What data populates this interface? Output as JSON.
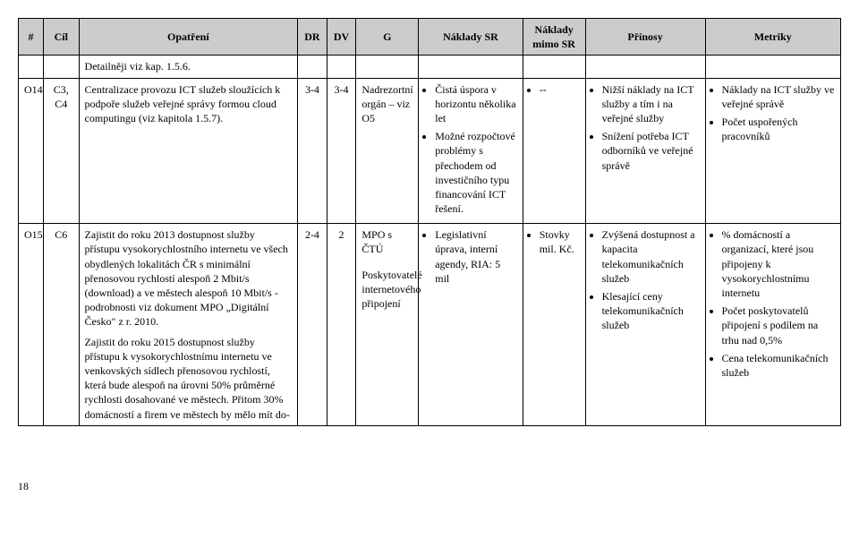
{
  "columns": [
    "#",
    "Cíl",
    "Opatření",
    "DR",
    "DV",
    "G",
    "Náklady SR",
    "Náklady mimo SR",
    "Přínosy",
    "Metriky"
  ],
  "detail_row": {
    "opatreni": "Detailněji viz kap. 1.5.6."
  },
  "rows": [
    {
      "hash": "O14",
      "cil": "C3, C4",
      "opatreni": "Centralizace provozu ICT služeb sloužících k podpoře služeb veřejné správy formou cloud computingu (viz kapitola 1.5.7).",
      "dr": "3-4",
      "dv": "3-4",
      "g": "Nadrezortní orgán – viz O5",
      "naklady_sr": [
        "Čistá úspora v horizontu několika let",
        "Možné rozpočtové problémy s přechodem od investičního typu financování ICT řešení."
      ],
      "naklady_mimo": [
        "--"
      ],
      "prinosy": [
        "Nižší náklady na ICT služby a tím i na veřejné služby",
        "Snížení potřeba ICT odborníků ve veřejné správě"
      ],
      "metriky": [
        "Náklady na ICT služby ve veřejné správě",
        "Počet uspořených pracovníků"
      ]
    },
    {
      "hash": "O15",
      "cil": "C6",
      "opatreni_p1": "Zajistit do roku 2013 dostupnost služby přístupu vysokorychlostního internetu ve všech obydlených lokalitách ČR s minimální přenosovou rychlostí alespoň 2 Mbit/s (download) a ve městech alespoň 10 Mbit/s - podrobnosti viz dokument MPO „Digitální Česko\" z r. 2010.",
      "opatreni_p2": "Zajistit do roku 2015 dostupnost služby přístupu k vysokorychlostnímu internetu ve venkovských sídlech přenosovou rychlostí, která bude alespoň na úrovni 50% průměrné rychlosti dosahované ve městech. Přitom 30% domácností a firem ve městech by mělo mít do-",
      "dr": "2-4",
      "dv": "2",
      "g_p1": "MPO s ČTÚ",
      "g_p2": "Poskytovatelé internetového připojení",
      "naklady_sr": [
        "Legislativní úprava, interní agendy, RIA: 5 mil"
      ],
      "naklady_mimo": [
        "Stovky mil. Kč."
      ],
      "prinosy": [
        "Zvýšená dostupnost a kapacita telekomunikačních služeb",
        "Klesající ceny telekomunikačních služeb"
      ],
      "metriky": [
        "% domácností a organizací, které jsou připojeny k vysokorychlostnímu internetu",
        "Počet poskytovatelů připojení s podílem na trhu nad 0,5%",
        "Cena telekomunikačních služeb"
      ]
    }
  ],
  "page_number": "18"
}
